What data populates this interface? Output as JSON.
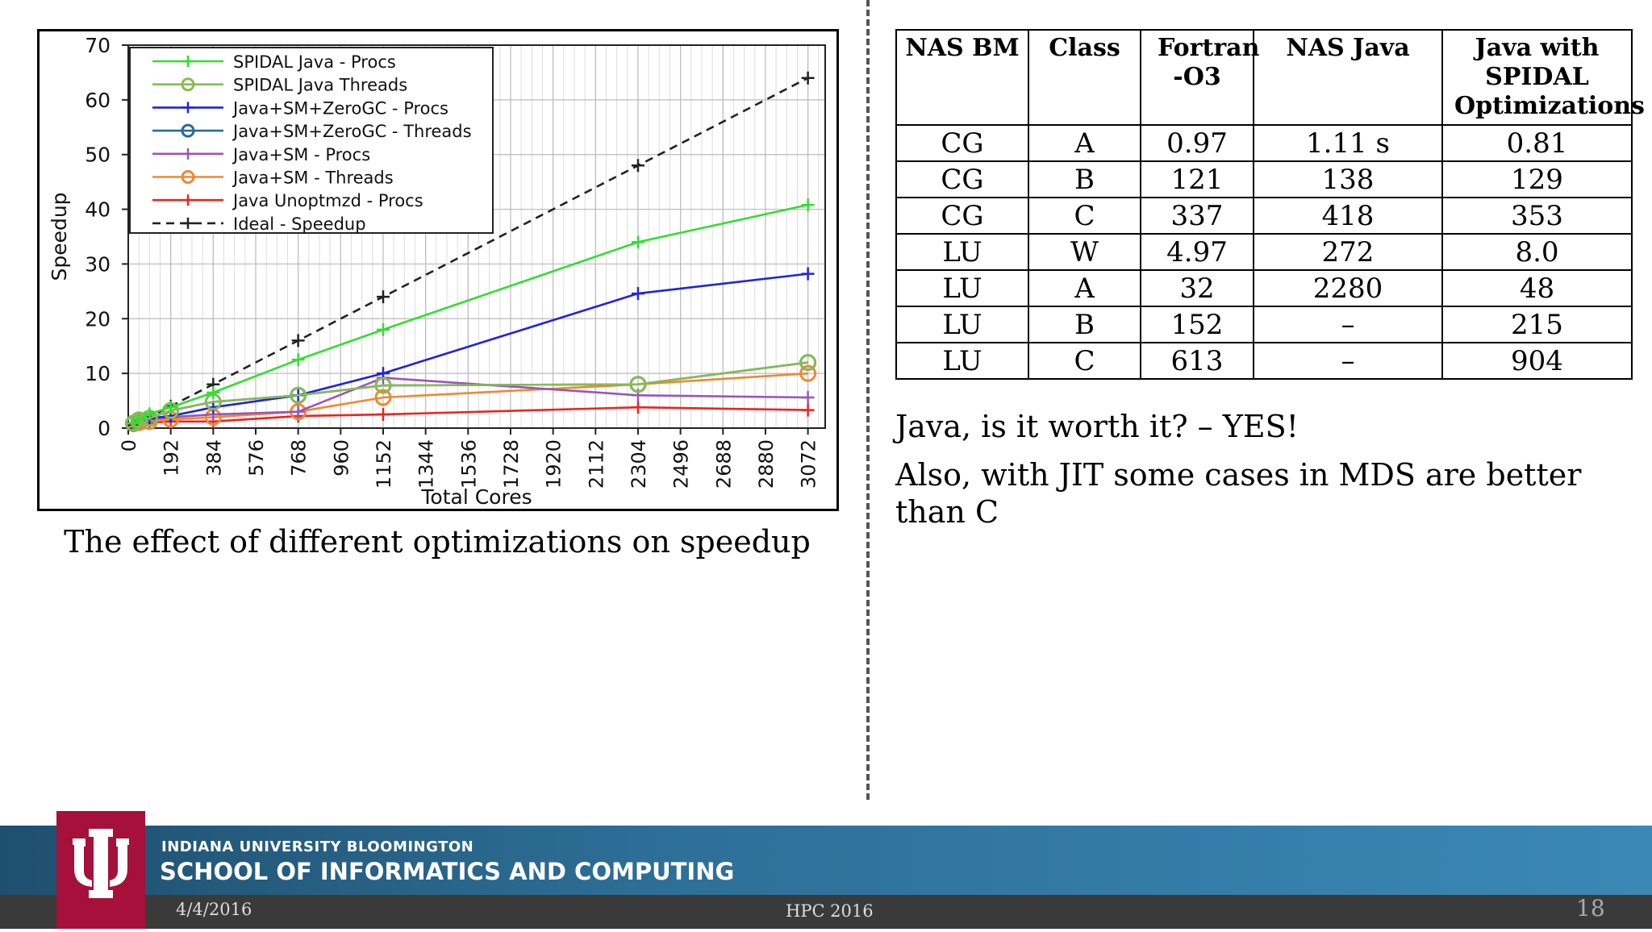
{
  "chart_data": {
    "type": "line",
    "xlabel": "Total Cores",
    "ylabel": "Speedup",
    "ylim": [
      0,
      70
    ],
    "yticks": [
      0,
      10,
      20,
      30,
      40,
      50,
      60,
      70
    ],
    "xticks": [
      0,
      192,
      384,
      576,
      768,
      960,
      1152,
      1344,
      1536,
      1728,
      1920,
      2112,
      2304,
      2496,
      2688,
      2880,
      3072
    ],
    "grid": true,
    "legend_position": "top-left",
    "series": [
      {
        "name": "SPIDAL Java - Procs",
        "color": "#33dd33",
        "marker": "plus",
        "dash": false,
        "x": [
          24,
          48,
          96,
          192,
          384,
          768,
          1152,
          2304,
          3072
        ],
        "y": [
          0.9,
          1.6,
          2.6,
          3.8,
          6.5,
          12.5,
          18,
          34,
          40.8
        ]
      },
      {
        "name": "SPIDAL Java Threads",
        "color": "#88bb55",
        "marker": "circle",
        "dash": false,
        "x": [
          24,
          48,
          96,
          192,
          384,
          768,
          1152,
          2304,
          3072
        ],
        "y": [
          0.9,
          1.5,
          1.8,
          3.2,
          4.8,
          6.0,
          7.8,
          8.0,
          12
        ]
      },
      {
        "name": "Java+SM+ZeroGC - Procs",
        "color": "#2222dd",
        "marker": "plus",
        "dash": false,
        "x": [
          24,
          48,
          96,
          192,
          384,
          768,
          1152,
          2304,
          3072
        ],
        "y": [
          0.9,
          1.5,
          1.8,
          2.2,
          3.8,
          6.0,
          10,
          24.6,
          28.2
        ]
      },
      {
        "name": "Java+SM+ZeroGC - Threads",
        "color": "#2a6a99",
        "marker": "circle",
        "dash": false,
        "x": [
          24,
          48,
          96,
          192,
          384,
          768,
          1152,
          2304,
          3072
        ],
        "y": [
          0.9,
          1.5,
          1.8,
          3.2,
          4.8,
          6.0,
          7.8,
          8.0,
          12
        ]
      },
      {
        "name": "Java+SM - Procs",
        "color": "#9955bb",
        "marker": "plus",
        "dash": false,
        "x": [
          24,
          48,
          96,
          192,
          384,
          768,
          1152,
          2304,
          3072
        ],
        "y": [
          0.9,
          1.3,
          1.6,
          2.0,
          2.5,
          3.0,
          9.2,
          6.0,
          5.6
        ]
      },
      {
        "name": "Java+SM - Threads",
        "color": "#ee8833",
        "marker": "circle",
        "dash": false,
        "x": [
          24,
          48,
          96,
          192,
          384,
          768,
          1152,
          2304,
          3072
        ],
        "y": [
          0.8,
          1.0,
          1.2,
          1.6,
          2.0,
          3.0,
          5.6,
          8.0,
          10
        ]
      },
      {
        "name": "Java Unoptmzd - Procs",
        "color": "#ee2222",
        "marker": "plus",
        "dash": false,
        "x": [
          24,
          48,
          96,
          192,
          384,
          768,
          1152,
          2304,
          3072
        ],
        "y": [
          0.8,
          0.9,
          1.0,
          1.2,
          1.2,
          2.2,
          2.5,
          3.8,
          3.3
        ]
      },
      {
        "name": "Ideal - Speedup",
        "color": "#222222",
        "marker": "plus",
        "dash": true,
        "x": [
          24,
          48,
          96,
          192,
          384,
          768,
          1152,
          2304,
          3072
        ],
        "y": [
          0.5,
          1,
          2,
          4,
          8,
          16,
          24,
          48,
          64
        ]
      }
    ]
  },
  "caption": "The effect of different optimizations on speedup",
  "table": {
    "headers": [
      "NAS BM",
      "Class",
      "Fortran -O3",
      "NAS Java",
      "Java with SPIDAL Optimizations"
    ],
    "rows": [
      [
        "CG",
        "A",
        "0.97",
        "1.11 s",
        "0.81"
      ],
      [
        "CG",
        "B",
        "121",
        "138",
        "129"
      ],
      [
        "CG",
        "C",
        "337",
        "418",
        "353"
      ],
      [
        "LU",
        "W",
        "4.97",
        "272",
        "8.0"
      ],
      [
        "LU",
        "A",
        "32",
        "2280",
        "48"
      ],
      [
        "LU",
        "B",
        "152",
        "–",
        "215"
      ],
      [
        "LU",
        "C",
        "613",
        "–",
        "904"
      ]
    ]
  },
  "text1": "Java, is it worth it? – YES!",
  "text2": "Also, with JIT some cases in MDS are better than C",
  "footer": {
    "university": "INDIANA UNIVERSITY BLOOMINGTON",
    "school": "SCHOOL OF INFORMATICS AND COMPUTING",
    "date": "4/4/2016",
    "conference": "HPC 2016",
    "page": "18"
  }
}
